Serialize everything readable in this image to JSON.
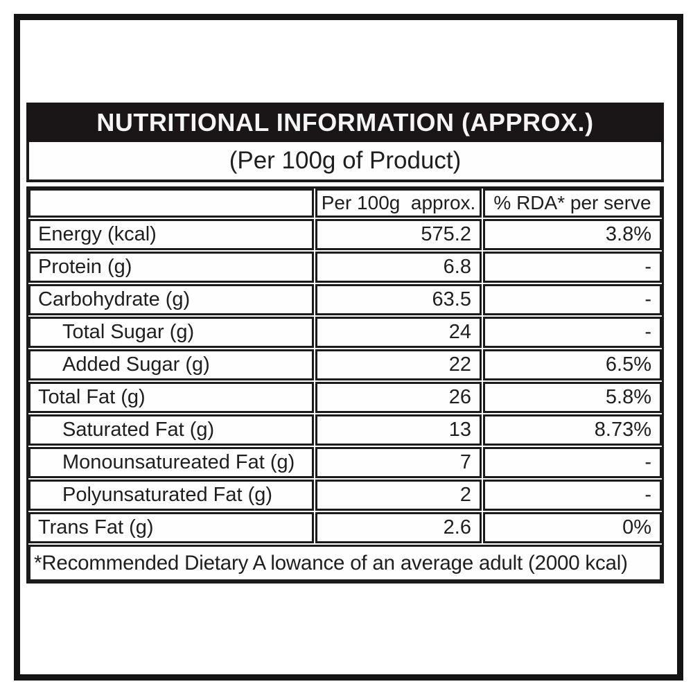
{
  "label": {
    "title": "NUTRITIONAL INFORMATION (APPROX.)",
    "subtitle": "(Per 100g of Product)",
    "columns": {
      "item": "",
      "per100g": "Per 100g  approx.",
      "rda": "% RDA* per serve"
    },
    "rows": [
      {
        "label": "Energy (kcal)",
        "per100g": "575.2",
        "rda": "3.8%",
        "indent": false
      },
      {
        "label": "Protein (g)",
        "per100g": "6.8",
        "rda": "-",
        "indent": false
      },
      {
        "label": "Carbohydrate (g)",
        "per100g": "63.5",
        "rda": "-",
        "indent": false
      },
      {
        "label": "Total Sugar (g)",
        "per100g": "24",
        "rda": "-",
        "indent": true
      },
      {
        "label": "Added Sugar (g)",
        "per100g": "22",
        "rda": "6.5%",
        "indent": true
      },
      {
        "label": "Total Fat (g)",
        "per100g": "26",
        "rda": "5.8%",
        "indent": false
      },
      {
        "label": "Saturated Fat (g)",
        "per100g": "13",
        "rda": "8.73%",
        "indent": true
      },
      {
        "label": "Monounsatureated Fat (g)",
        "per100g": "7",
        "rda": "-",
        "indent": true
      },
      {
        "label": "Polyunsaturated Fat (g)",
        "per100g": "2",
        "rda": "-",
        "indent": true
      },
      {
        "label": "Trans Fat (g)",
        "per100g": "2.6",
        "rda": "0%",
        "indent": false
      }
    ],
    "footnote": "*Recommended Dietary A lowance of an average adult (2000 kcal)",
    "colors": {
      "band_background": "#1a1517",
      "band_text": "#f5f5f5",
      "border": "#1b1b1b",
      "text": "#1e1e1e",
      "background": "#ffffff"
    }
  }
}
